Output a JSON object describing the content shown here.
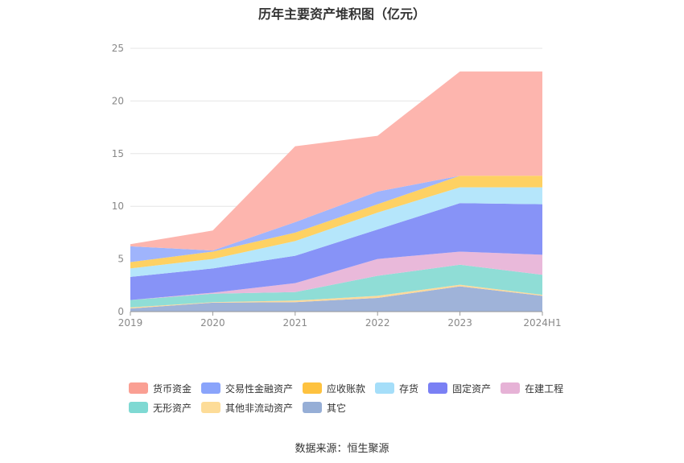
{
  "chart_data": {
    "type": "area",
    "stacked": true,
    "title": "历年主要资产堆积图（亿元）",
    "x": [
      "2019",
      "2020",
      "2021",
      "2022",
      "2023",
      "2024H1"
    ],
    "ylim": [
      0,
      25
    ],
    "yticks": [
      0,
      5,
      10,
      15,
      20,
      25
    ],
    "grid": true,
    "legend_position": "bottom",
    "series": [
      {
        "name": "其它",
        "color": "#9fb3d9",
        "values": [
          0.3,
          0.85,
          0.9,
          1.3,
          2.4,
          1.5
        ]
      },
      {
        "name": "其他非流动资产",
        "color": "#fdd99b",
        "values": [
          0.1,
          0.05,
          0.15,
          0.2,
          0.15,
          0.1
        ]
      },
      {
        "name": "无形资产",
        "color": "#8fddd6",
        "values": [
          0.7,
          0.8,
          0.8,
          1.9,
          1.9,
          1.9
        ]
      },
      {
        "name": "在建工程",
        "color": "#e9b9da",
        "values": [
          0.0,
          0.1,
          0.85,
          1.6,
          1.25,
          1.9
        ]
      },
      {
        "name": "固定资产",
        "color": "#8793f7",
        "values": [
          2.2,
          2.3,
          2.6,
          2.8,
          4.6,
          4.8
        ]
      },
      {
        "name": "存货",
        "color": "#b5e6fb",
        "values": [
          0.8,
          0.9,
          1.4,
          1.6,
          1.5,
          1.6
        ]
      },
      {
        "name": "应收账款",
        "color": "#fed163",
        "values": [
          0.6,
          0.7,
          0.8,
          0.8,
          1.1,
          1.1
        ]
      },
      {
        "name": "交易性金融资产",
        "color": "#9fb4fc",
        "values": [
          1.5,
          0.1,
          1.0,
          1.2,
          0.0,
          0.0
        ]
      },
      {
        "name": "货币资金",
        "color": "#fdb5ae",
        "values": [
          0.2,
          1.9,
          7.2,
          5.3,
          9.9,
          9.9
        ]
      }
    ]
  },
  "legend": [
    {
      "name": "货币资金",
      "color": "#fa9f93"
    },
    {
      "name": "交易性金融资产",
      "color": "#8aa4fb"
    },
    {
      "name": "应收账款",
      "color": "#fec23f"
    },
    {
      "name": "存货",
      "color": "#a5def9"
    },
    {
      "name": "固定资产",
      "color": "#7a80f4"
    },
    {
      "name": "在建工程",
      "color": "#e6b2d6"
    },
    {
      "name": "无形资产",
      "color": "#7fd9d3"
    },
    {
      "name": "其他非流动资产",
      "color": "#fddc98"
    },
    {
      "name": "其它",
      "color": "#96aed6"
    }
  ],
  "source": "数据来源：恒生聚源"
}
